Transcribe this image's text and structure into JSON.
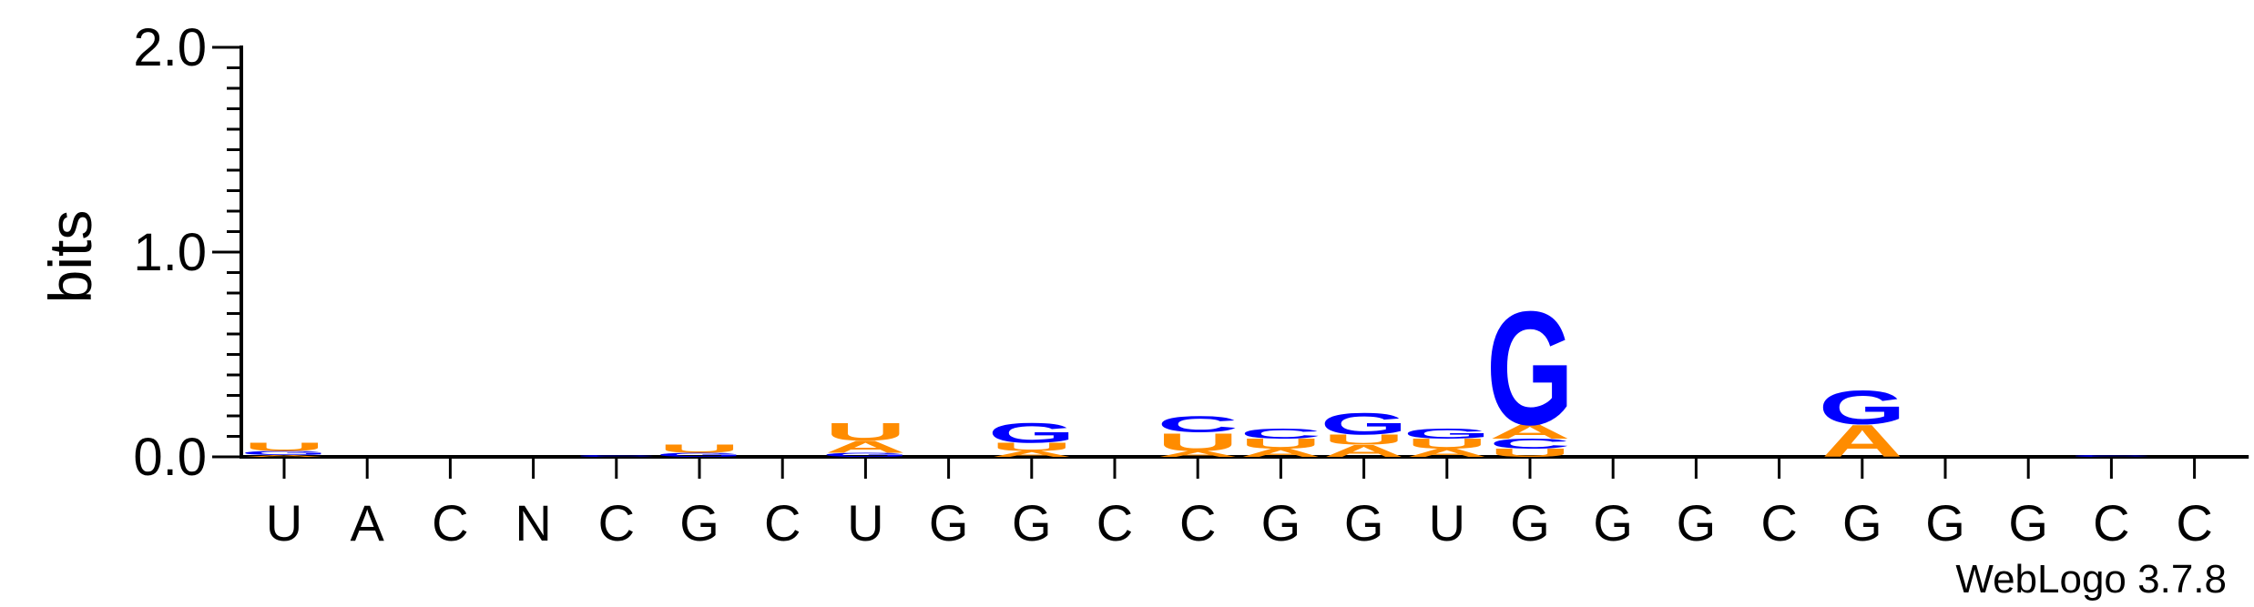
{
  "chart_data": {
    "type": "sequence-logo",
    "ylabel": "bits",
    "ylim": [
      0,
      2.0
    ],
    "yticks": [
      {
        "value": 0.0,
        "label": "0.0"
      },
      {
        "value": 1.0,
        "label": "1.0"
      },
      {
        "value": 2.0,
        "label": "2.0"
      }
    ],
    "colors": {
      "G": "#0000ff",
      "C": "#0000ff",
      "A": "#ff8c00",
      "U": "#ff8c00"
    },
    "positions": [
      {
        "label": "U",
        "stack": [
          {
            "letter": "A",
            "bits": 0.01
          },
          {
            "letter": "G",
            "bits": 0.02
          },
          {
            "letter": "U",
            "bits": 0.04
          }
        ]
      },
      {
        "label": "A",
        "stack": []
      },
      {
        "label": "C",
        "stack": []
      },
      {
        "label": "N",
        "stack": []
      },
      {
        "label": "C",
        "stack": [
          {
            "letter": "C",
            "bits": 0.01
          }
        ]
      },
      {
        "label": "G",
        "stack": [
          {
            "letter": "G",
            "bits": 0.02
          },
          {
            "letter": "U",
            "bits": 0.04
          }
        ]
      },
      {
        "label": "C",
        "stack": []
      },
      {
        "label": "U",
        "stack": [
          {
            "letter": "G",
            "bits": 0.02
          },
          {
            "letter": "A",
            "bits": 0.06
          },
          {
            "letter": "U",
            "bits": 0.09
          }
        ]
      },
      {
        "label": "G",
        "stack": []
      },
      {
        "label": "G",
        "stack": [
          {
            "letter": "A",
            "bits": 0.03
          },
          {
            "letter": "U",
            "bits": 0.04
          },
          {
            "letter": "G",
            "bits": 0.1
          }
        ]
      },
      {
        "label": "C",
        "stack": []
      },
      {
        "label": "C",
        "stack": [
          {
            "letter": "A",
            "bits": 0.03
          },
          {
            "letter": "U",
            "bits": 0.09
          },
          {
            "letter": "C",
            "bits": 0.08
          }
        ]
      },
      {
        "label": "G",
        "stack": [
          {
            "letter": "A",
            "bits": 0.04
          },
          {
            "letter": "U",
            "bits": 0.05
          },
          {
            "letter": "C",
            "bits": 0.05
          }
        ]
      },
      {
        "label": "G",
        "stack": [
          {
            "letter": "A",
            "bits": 0.06
          },
          {
            "letter": "U",
            "bits": 0.05
          },
          {
            "letter": "G",
            "bits": 0.11
          }
        ]
      },
      {
        "label": "U",
        "stack": [
          {
            "letter": "A",
            "bits": 0.04
          },
          {
            "letter": "U",
            "bits": 0.05
          },
          {
            "letter": "G",
            "bits": 0.05
          }
        ]
      },
      {
        "label": "G",
        "stack": [
          {
            "letter": "U",
            "bits": 0.04
          },
          {
            "letter": "C",
            "bits": 0.05
          },
          {
            "letter": "A",
            "bits": 0.07
          },
          {
            "letter": "G",
            "bits": 0.57
          }
        ]
      },
      {
        "label": "G",
        "stack": []
      },
      {
        "label": "G",
        "stack": []
      },
      {
        "label": "C",
        "stack": []
      },
      {
        "label": "G",
        "stack": [
          {
            "letter": "A",
            "bits": 0.16
          },
          {
            "letter": "G",
            "bits": 0.17
          }
        ]
      },
      {
        "label": "G",
        "stack": []
      },
      {
        "label": "G",
        "stack": []
      },
      {
        "label": "C",
        "stack": [
          {
            "letter": "C",
            "bits": 0.01
          }
        ]
      },
      {
        "label": "C",
        "stack": []
      }
    ]
  },
  "credit": "WebLogo 3.7.8"
}
